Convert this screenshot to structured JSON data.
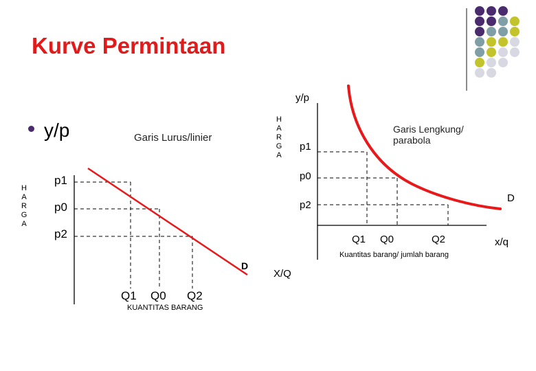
{
  "title": "Kurve Permintaan",
  "bullet_text": "y/p",
  "left_chart": {
    "y_axis_label_vertical": [
      "H",
      "A",
      "R",
      "G",
      "A"
    ],
    "line_label": "Garis Lurus/linier",
    "p_labels": [
      "p1",
      "p0",
      "p2"
    ],
    "q_labels": [
      "Q1",
      "Q0",
      "Q2"
    ],
    "demand_label": "D",
    "x_axis_label": "KUANTITAS BARANG",
    "axis_end_label": "X/Q"
  },
  "right_chart": {
    "y_axis_top_label": "y/p",
    "y_axis_label_vertical": [
      "H",
      "A",
      "R",
      "G",
      "A"
    ],
    "curve_label_line1": "Garis Lengkung/",
    "curve_label_line2": "parabola",
    "p_labels": [
      "p1",
      "p0",
      "p2"
    ],
    "q_labels": [
      "Q1",
      "Q0",
      "Q2"
    ],
    "demand_label": "D",
    "x_axis_label": "Kuantitas barang/ jumlah barang",
    "axis_end_label": "x/q"
  },
  "colors": {
    "title": "#e11b1b",
    "curve": "#e8191b",
    "dot_purple": "#4a2c6e",
    "dot_teal": "#7f9ea6",
    "dot_olive": "#c3c32b",
    "dot_light": "#d8d8e2"
  }
}
